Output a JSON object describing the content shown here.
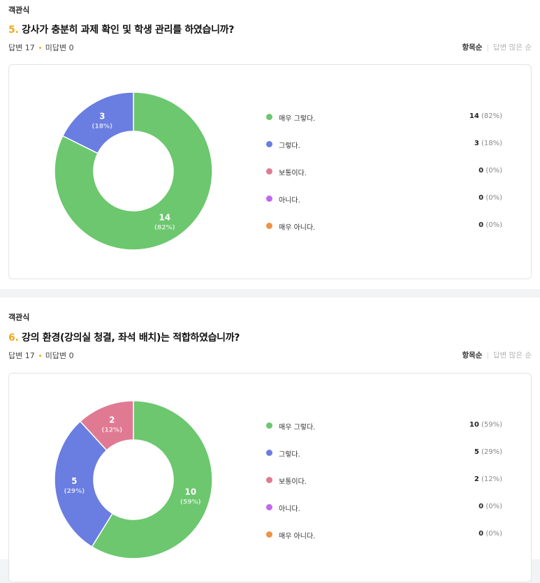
{
  "questions": [
    {
      "type_label": "객관식",
      "number": "5.",
      "title": "강사가 충분히 과제 확인 및 학생 관리를 하였습니까?",
      "answered": "답변 17",
      "unanswered": "미답변 0",
      "sort_active": "항목순",
      "sort_inactive": "답변 많은 순",
      "chart_data": {
        "type": "pie",
        "categories": [
          "매우 그렇다.",
          "그렇다.",
          "보통이다.",
          "아니다.",
          "매우 아니다."
        ],
        "values": [
          14,
          3,
          0,
          0,
          0
        ],
        "percents": [
          "(82%)",
          "(18%)",
          "(0%)",
          "(0%)",
          "(0%)"
        ],
        "colors": [
          "#6cc76e",
          "#6a7de0",
          "#e07a93",
          "#c268ee",
          "#ee9244"
        ]
      }
    },
    {
      "type_label": "객관식",
      "number": "6.",
      "title": "강의 환경(강의실 청결, 좌석 배치)는 적합하였습니까?",
      "answered": "답변 17",
      "unanswered": "미답변 0",
      "sort_active": "항목순",
      "sort_inactive": "답변 많은 순",
      "chart_data": {
        "type": "pie",
        "categories": [
          "매우 그렇다.",
          "그렇다.",
          "보통이다.",
          "아니다.",
          "매우 아니다."
        ],
        "values": [
          10,
          5,
          2,
          0,
          0
        ],
        "percents": [
          "(59%)",
          "(29%)",
          "(12%)",
          "(0%)",
          "(0%)"
        ],
        "colors": [
          "#6cc76e",
          "#6a7de0",
          "#e07a93",
          "#c268ee",
          "#ee9244"
        ]
      }
    }
  ]
}
